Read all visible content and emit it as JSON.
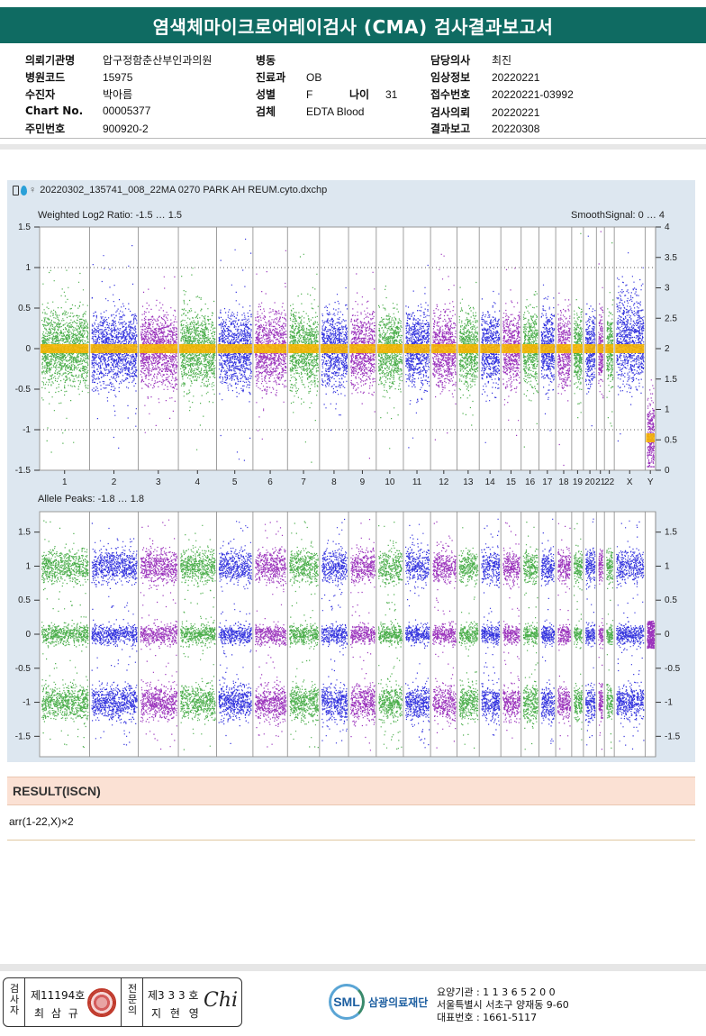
{
  "report_title": "염색체마이크로어레이검사 (CMA) 검사결과보고서",
  "patient_info": {
    "col1": [
      {
        "label": "의뢰기관명",
        "value": "압구정함춘산부인과의원"
      },
      {
        "label": "병원코드",
        "value": "15975"
      },
      {
        "label": "수진자",
        "value": "박아름"
      },
      {
        "label": "Chart No.",
        "value": "00005377"
      },
      {
        "label": "주민번호",
        "value": "900920-2"
      }
    ],
    "col2": [
      {
        "label": "병동",
        "value": ""
      },
      {
        "label": "진료과",
        "value": "OB"
      },
      {
        "label": "성별",
        "value": "F"
      },
      {
        "label": "검체",
        "value": "EDTA Blood"
      }
    ],
    "age": {
      "label": "나이",
      "value": "31"
    },
    "col3": [
      {
        "label": "담당의사",
        "value": "최진"
      },
      {
        "label": "임상정보",
        "value": "20220221"
      },
      {
        "label": "접수번호",
        "value": "20220221-03992"
      },
      {
        "label": "검사의뢰",
        "value": "20220221"
      },
      {
        "label": "결과보고",
        "value": "20220308"
      }
    ]
  },
  "plot": {
    "filename": "20220302_135741_008_22MA 0270 PARK AH REUM.cyto.dxchp",
    "top_label_left": "Weighted Log2 Ratio: -1.5 … 1.5",
    "top_label_right": "SmoothSignal: 0 … 4",
    "bottom_label": "Allele Peaks: -1.8 … 1.8"
  },
  "chart_data": [
    {
      "type": "scatter",
      "title": "Weighted Log2 Ratio: -1.5 … 1.5",
      "secondary_title": "SmoothSignal: 0 … 4",
      "ylim": [
        -1.5,
        1.5
      ],
      "y2lim": [
        0,
        4
      ],
      "yticks": [
        "1.5",
        "1",
        "0.5",
        "0",
        "-0.5",
        "-1",
        "-1.5"
      ],
      "y2ticks": [
        "4",
        "3.5",
        "3",
        "2.5",
        "2",
        "1.5",
        "1",
        "0.5",
        "0"
      ],
      "categories": [
        "1",
        "2",
        "3",
        "4",
        "5",
        "6",
        "7",
        "8",
        "9",
        "10",
        "11",
        "12",
        "13",
        "14",
        "15",
        "16",
        "17",
        "18",
        "19",
        "20",
        "21",
        "22",
        "X",
        "Y"
      ],
      "series": [
        {
          "name": "",
          "values": [
            0,
            0,
            0,
            0,
            0,
            0,
            0,
            0,
            0,
            0,
            0,
            0,
            0,
            0,
            0,
            0,
            0,
            0,
            0,
            0,
            0,
            0,
            0,
            -1.1
          ]
        }
      ],
      "colors": [
        "#2ca02c",
        "#1010d8",
        "#8a10b0",
        "#f5b400"
      ],
      "grid": true
    },
    {
      "type": "scatter",
      "title": "Allele Peaks: -1.8 … 1.8",
      "ylim": [
        -1.8,
        1.8
      ],
      "yticks": [
        "1.5",
        "1",
        "0.5",
        "0",
        "-0.5",
        "-1",
        "-1.5"
      ],
      "y2ticks": [
        "1.5",
        "1",
        "0.5",
        "0",
        "-0.5",
        "-1",
        "-1.5"
      ],
      "categories": [
        "1",
        "2",
        "3",
        "4",
        "5",
        "6",
        "7",
        "8",
        "9",
        "10",
        "11",
        "12",
        "13",
        "14",
        "15",
        "16",
        "17",
        "18",
        "19",
        "20",
        "21",
        "22",
        "X",
        "Y"
      ],
      "series": [
        {
          "name": "",
          "values": [
            1,
            0,
            -1
          ]
        }
      ],
      "colors": [
        "#2ca02c",
        "#1010d8",
        "#8a10b0"
      ]
    }
  ],
  "result": {
    "header": "RESULT(ISCN)",
    "text": "arr(1-22,X)×2"
  },
  "footer": {
    "examiner_label": "검사자",
    "examiner_no": "제11194호",
    "examiner_name": "최 삼 규",
    "specialist_label": "전문의",
    "specialist_no": "제3 3 3 호",
    "specialist_name": "지 현 영",
    "signature": "Chi",
    "logo_text": "SML",
    "org_name": "삼광의료재단",
    "addr_line1": "요양기관 : 1 1 3 6 5 2 0 0",
    "addr_line2": "서울특별시 서초구 양재동 9-60",
    "addr_line3": "대표번호 : 1661-5117"
  }
}
